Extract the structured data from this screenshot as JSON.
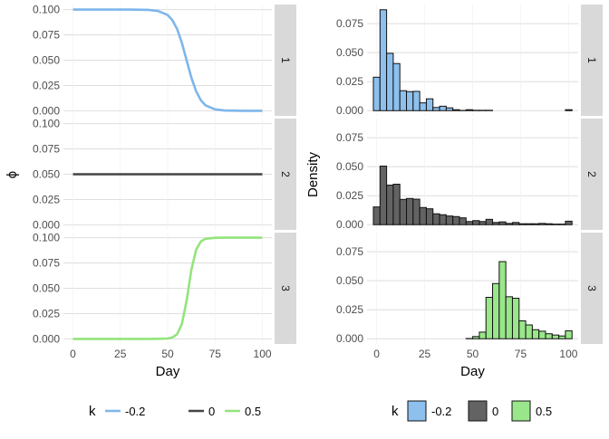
{
  "chart_data": [
    {
      "type": "line",
      "title": "",
      "xlabel": "Day",
      "ylabel": "ϕ",
      "xlim": [
        -5,
        105
      ],
      "ylim": [
        -0.005,
        0.105
      ],
      "x_ticks": [
        "0",
        "25",
        "50",
        "75",
        "100"
      ],
      "y_ticks": [
        "0.000",
        "0.025",
        "0.050",
        "0.075",
        "0.100"
      ],
      "grid": true,
      "facets": [
        "1",
        "2",
        "3"
      ],
      "x": [
        0,
        10,
        20,
        30,
        40,
        45,
        50,
        52.5,
        55,
        57.5,
        60,
        62.5,
        65,
        67.5,
        70,
        75,
        80,
        90,
        100
      ],
      "series": [
        {
          "name": "-0.2",
          "facet": "1",
          "color": "#7eb6ea",
          "values": [
            0.1,
            0.1,
            0.1,
            0.1,
            0.0997,
            0.0986,
            0.0946,
            0.0895,
            0.0807,
            0.0671,
            0.05,
            0.0329,
            0.0193,
            0.0105,
            0.0054,
            0.0014,
            0.0003,
            0,
            0
          ]
        },
        {
          "name": "0",
          "facet": "2",
          "color": "#444444",
          "values": [
            0.05,
            0.05,
            0.05,
            0.05,
            0.05,
            0.05,
            0.05,
            0.05,
            0.05,
            0.05,
            0.05,
            0.05,
            0.05,
            0.05,
            0.05,
            0.05,
            0.05,
            0.05,
            0.05
          ]
        },
        {
          "name": "0.5",
          "facet": "3",
          "color": "#93e47d",
          "values": [
            0,
            0,
            0,
            0,
            0,
            0.0001,
            0.0004,
            0.0014,
            0.0047,
            0.0148,
            0.0377,
            0.068,
            0.0881,
            0.0962,
            0.0989,
            0.0999,
            0.1,
            0.1,
            0.1
          ]
        }
      ],
      "legend": {
        "title": "k",
        "position": "bottom",
        "labels": [
          "-0.2",
          "0",
          "0.5"
        ]
      }
    },
    {
      "type": "bar",
      "title": "",
      "xlabel": "Day",
      "ylabel": "Density",
      "xlim": [
        -5,
        105
      ],
      "ylim": [
        -0.0045,
        0.0915
      ],
      "x_ticks": [
        "0",
        "25",
        "50",
        "75",
        "100"
      ],
      "y_ticks": [
        "0.000",
        "0.025",
        "0.050",
        "0.075"
      ],
      "grid": true,
      "facets": [
        "1",
        "2",
        "3"
      ],
      "bins": {
        "start": -1.7,
        "width": 3.45,
        "count": 30
      },
      "series": [
        {
          "name": "-0.2",
          "facet": "1",
          "color": "#8ec0ee",
          "values": [
            0.0288,
            0.087,
            0.0494,
            0.0406,
            0.0172,
            0.0164,
            0.0166,
            0.0067,
            0.0102,
            0.0027,
            0.0038,
            0.0024,
            0.0008,
            0.0002,
            0.0008,
            0.0003,
            0.0003,
            0.0003,
            0,
            0,
            0,
            0,
            0,
            0,
            0,
            0,
            0,
            0,
            0,
            0.0008
          ]
        },
        {
          "name": "0",
          "facet": "2",
          "color": "#636363",
          "values": [
            0.0153,
            0.0505,
            0.0341,
            0.0349,
            0.0218,
            0.0226,
            0.022,
            0.0148,
            0.0137,
            0.0094,
            0.0086,
            0.0075,
            0.007,
            0.0059,
            0.0027,
            0.0035,
            0.0027,
            0.0046,
            0.0019,
            0.0024,
            0.0011,
            0.0019,
            0.0008,
            0.0008,
            0.0008,
            0.0011,
            0.0008,
            0.0005,
            0.0005,
            0.003
          ]
        },
        {
          "name": "0.5",
          "facet": "3",
          "color": "#9ae68a",
          "values": [
            0,
            0,
            0,
            0,
            0,
            0,
            0,
            0,
            0,
            0,
            0,
            0,
            0,
            0,
            0.0002,
            0.0019,
            0.0057,
            0.0357,
            0.0476,
            0.0665,
            0.0362,
            0.0349,
            0.0154,
            0.0119,
            0.0078,
            0.0065,
            0.0043,
            0.0032,
            0.0024,
            0.0068
          ]
        }
      ],
      "legend": {
        "title": "k",
        "position": "bottom",
        "labels": [
          "-0.2",
          "0",
          "0.5"
        ]
      }
    }
  ]
}
